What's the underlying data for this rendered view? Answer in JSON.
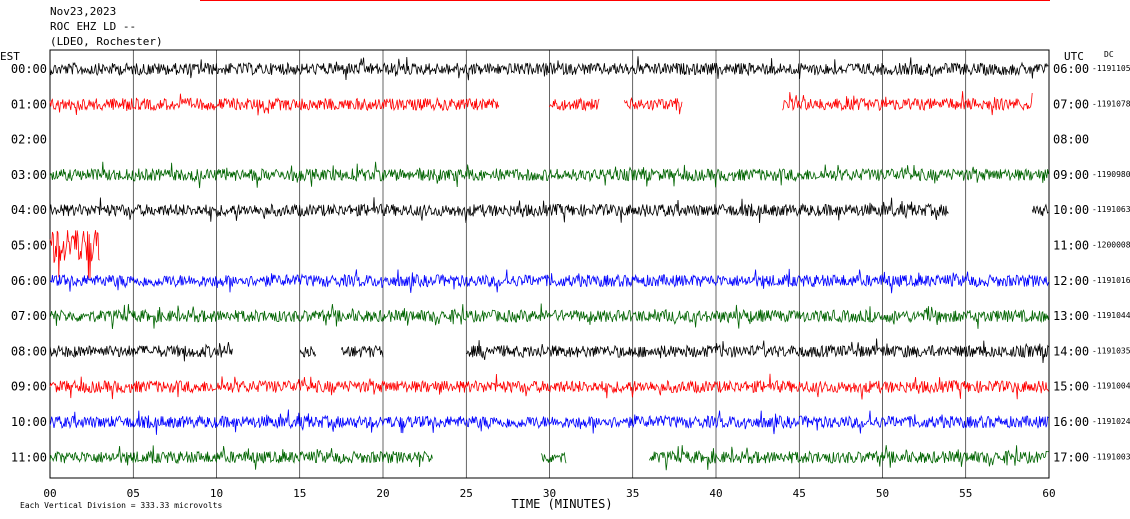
{
  "header": {
    "date": "Nov23,2023",
    "station": "ROC EHZ LD --",
    "network": "(LDEO, Rochester)"
  },
  "chart_data": {
    "type": "line",
    "title": "",
    "left_axis_label": "EST",
    "right_axis_label": "UTC",
    "dc_label": "DC",
    "xlabel": "TIME (MINUTES)",
    "xlim": [
      0,
      60
    ],
    "x_ticks": [
      "00",
      "05",
      "10",
      "15",
      "20",
      "25",
      "30",
      "35",
      "40",
      "45",
      "50",
      "55",
      "60"
    ],
    "scale_note": "Each Vertical Division = 333.33 microvolts",
    "grid": true,
    "colors": {
      "black": "#000000",
      "red": "#ff0000",
      "blue": "#0000ff",
      "green": "#006400"
    },
    "rows": [
      {
        "est": "00:00",
        "utc": "06:00",
        "dc": "-1191105",
        "color": "black",
        "amp": 1.0,
        "segments": [
          [
            0,
            60
          ]
        ]
      },
      {
        "est": "01:00",
        "utc": "07:00",
        "dc": "-1191078",
        "color": "red",
        "amp": 1.0,
        "segments": [
          [
            0,
            27
          ],
          [
            30,
            33
          ],
          [
            34.5,
            38
          ],
          [
            44,
            59
          ]
        ]
      },
      {
        "est": "02:00",
        "utc": "08:00",
        "dc": "",
        "color": "black",
        "amp": 0,
        "segments": []
      },
      {
        "est": "03:00",
        "utc": "09:00",
        "dc": "-1190980",
        "color": "green",
        "amp": 1.0,
        "segments": [
          [
            0,
            60
          ]
        ]
      },
      {
        "est": "04:00",
        "utc": "10:00",
        "dc": "-1191063",
        "color": "black",
        "amp": 1.0,
        "segments": [
          [
            0,
            54
          ],
          [
            59,
            60
          ]
        ]
      },
      {
        "est": "05:00",
        "utc": "11:00",
        "dc": "-1200008",
        "color": "red",
        "amp": 3.0,
        "segments": [
          [
            0,
            3
          ]
        ]
      },
      {
        "est": "06:00",
        "utc": "12:00",
        "dc": "-1191016",
        "color": "blue",
        "amp": 1.0,
        "segments": [
          [
            0,
            60
          ]
        ]
      },
      {
        "est": "07:00",
        "utc": "13:00",
        "dc": "-1191044",
        "color": "green",
        "amp": 1.0,
        "segments": [
          [
            0,
            60
          ]
        ]
      },
      {
        "est": "08:00",
        "utc": "14:00",
        "dc": "-1191035",
        "color": "black",
        "amp": 1.0,
        "segments": [
          [
            0,
            11
          ],
          [
            15,
            16
          ],
          [
            17.5,
            20
          ],
          [
            25,
            60
          ]
        ]
      },
      {
        "est": "09:00",
        "utc": "15:00",
        "dc": "-1191004",
        "color": "red",
        "amp": 1.0,
        "segments": [
          [
            0,
            60
          ]
        ]
      },
      {
        "est": "10:00",
        "utc": "16:00",
        "dc": "-1191024",
        "color": "blue",
        "amp": 1.0,
        "segments": [
          [
            0,
            60
          ]
        ]
      },
      {
        "est": "11:00",
        "utc": "17:00",
        "dc": "-1191003",
        "color": "green",
        "amp": 1.0,
        "segments": [
          [
            0,
            23
          ],
          [
            29.5,
            31
          ],
          [
            36,
            60
          ]
        ]
      }
    ]
  }
}
